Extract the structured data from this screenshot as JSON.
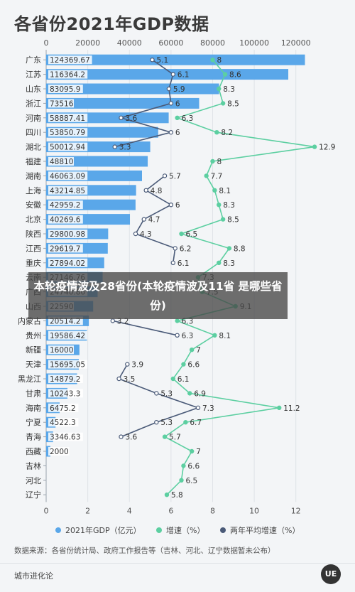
{
  "title": "各省份2021年GDP数据",
  "caption": "本轮疫情波及28省份(本轮疫情波及11省 是哪些省份)",
  "legend": {
    "gdp": "2021年GDP（亿元）",
    "growth": "增速（%）",
    "avg": "两年平均增速（%）"
  },
  "colors": {
    "bar": "#5aa7e9",
    "growth": "#5ccfa1",
    "avg": "#4a5a78",
    "label_bg": "#ffffff"
  },
  "source": "数据来源：各省份统计局、政府工作报告等（吉林、河北、辽宁数据暂未公布）",
  "footer": "城市进化论",
  "logo_text": "UE",
  "chart_data": {
    "type": "bar",
    "top_axis": {
      "label": "",
      "range": [
        0,
        130000
      ],
      "ticks": [
        "0",
        "20000",
        "40000",
        "60000",
        "80000",
        "100000",
        "120000"
      ]
    },
    "bottom_axis": {
      "label": "",
      "range": [
        0,
        13
      ],
      "ticks": [
        "0",
        "2",
        "4",
        "6",
        "8",
        "10",
        "12"
      ]
    },
    "categories": [
      "广东",
      "江苏",
      "山东",
      "浙江",
      "河南",
      "四川",
      "湖北",
      "福建",
      "湖南",
      "上海",
      "安徽",
      "北京",
      "陕西",
      "江西",
      "重庆",
      "云南",
      "广西",
      "山西",
      "内蒙古",
      "贵州",
      "新疆",
      "天津",
      "黑龙江",
      "甘肃",
      "海南",
      "宁夏",
      "青海",
      "西藏",
      "吉林",
      "河北",
      "辽宁"
    ],
    "gdp_labels": [
      "124369.67",
      "116364.2",
      "83095.9",
      "73516",
      "58887.41",
      "53850.79",
      "50012.94",
      "48810",
      "46063.09",
      "43214.85",
      "42959.2",
      "40269.6",
      "29800.98",
      "29619.7",
      "27894.02",
      "27146.76",
      "24740.86",
      "22590",
      "20514.2",
      "19586.42",
      "16000",
      "15695.05",
      "14879.2",
      "10243.3",
      "6475.2",
      "4522.3",
      "3346.63",
      "2000",
      "",
      "",
      ""
    ],
    "series": [
      {
        "name": "2021年GDP（亿元）",
        "values": [
          124369.67,
          116364.2,
          83095.9,
          73516,
          58887.41,
          53850.79,
          50012.94,
          48810,
          46063.09,
          43214.85,
          42959.2,
          40269.6,
          29800.98,
          29619.7,
          27894.02,
          27146.76,
          24740.86,
          22590,
          20514.2,
          19586.42,
          16000,
          15695.05,
          14879.2,
          10243.3,
          6475.2,
          4522.3,
          3346.63,
          2000,
          null,
          null,
          null
        ]
      },
      {
        "name": "增速（%）",
        "values": [
          8,
          8.6,
          8.3,
          8.5,
          6.3,
          8.2,
          12.9,
          8,
          7.7,
          8.1,
          8.3,
          8.5,
          6.5,
          8.8,
          8.3,
          7.3,
          7.5,
          9.1,
          6.3,
          8.1,
          7,
          6.6,
          6.1,
          6.9,
          11.2,
          6.7,
          5.7,
          7,
          6.6,
          6.5,
          5.8
        ]
      },
      {
        "name": "两年平均增速（%）",
        "values": [
          5.1,
          6.1,
          5.9,
          6,
          3.6,
          6,
          3.3,
          null,
          5.7,
          4.8,
          6,
          4.7,
          4.3,
          6.2,
          6.1,
          null,
          null,
          null,
          3.2,
          6.3,
          null,
          3.9,
          3.5,
          5.3,
          7.3,
          5.3,
          3.6,
          null,
          null,
          null,
          null
        ]
      }
    ],
    "grid": true,
    "legend_position": "bottom"
  }
}
